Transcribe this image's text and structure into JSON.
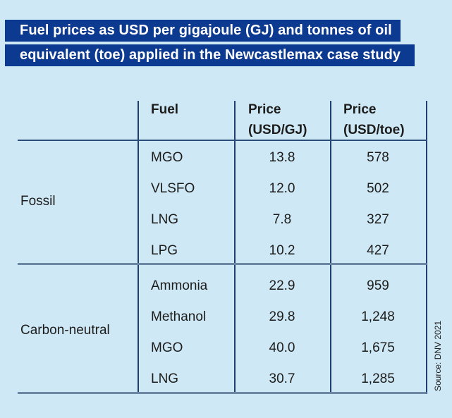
{
  "title": {
    "line1": "Fuel prices as USD per gigajoule (GJ) and tonnes of oil",
    "line2": "equivalent (toe) applied in the Newcastlemax case study"
  },
  "colors": {
    "background": "#cfe8f6",
    "title_bar": "#0d3a91",
    "title_text": "#ffffff",
    "grid_dark": "#1e3f70",
    "grid_mid": "#2c4d77",
    "grid_light": "#6b87a4",
    "text": "#1d1d1b"
  },
  "table": {
    "header": {
      "fuel": "Fuel",
      "price_gj_line1": "Price",
      "price_gj_line2": "(USD/GJ)",
      "price_toe_line1": "Price",
      "price_toe_line2": "(USD/toe)"
    },
    "sections": [
      {
        "category": "Fossil",
        "rows": [
          {
            "fuel": "MGO",
            "price_gj": "13.8",
            "price_toe": "578"
          },
          {
            "fuel": "VLSFO",
            "price_gj": "12.0",
            "price_toe": "502"
          },
          {
            "fuel": "LNG",
            "price_gj": "7.8",
            "price_toe": "327"
          },
          {
            "fuel": "LPG",
            "price_gj": "10.2",
            "price_toe": "427"
          }
        ]
      },
      {
        "category": "Carbon-neutral",
        "rows": [
          {
            "fuel": "Ammonia",
            "price_gj": "22.9",
            "price_toe": "959"
          },
          {
            "fuel": "Methanol",
            "price_gj": "29.8",
            "price_toe": "1,248"
          },
          {
            "fuel": "MGO",
            "price_gj": "40.0",
            "price_toe": "1,675"
          },
          {
            "fuel": "LNG",
            "price_gj": "30.7",
            "price_toe": "1,285"
          }
        ]
      }
    ]
  },
  "source": "Source: DNV 2021",
  "chart_data": {
    "type": "table",
    "title": "Fuel prices as USD per gigajoule (GJ) and tonnes of oil equivalent (toe) applied in the Newcastlemax case study",
    "columns": [
      "Category",
      "Fuel",
      "Price (USD/GJ)",
      "Price (USD/toe)"
    ],
    "rows": [
      [
        "Fossil",
        "MGO",
        13.8,
        578
      ],
      [
        "Fossil",
        "VLSFO",
        12.0,
        502
      ],
      [
        "Fossil",
        "LNG",
        7.8,
        327
      ],
      [
        "Fossil",
        "LPG",
        10.2,
        427
      ],
      [
        "Carbon-neutral",
        "Ammonia",
        22.9,
        959
      ],
      [
        "Carbon-neutral",
        "Methanol",
        29.8,
        1248
      ],
      [
        "Carbon-neutral",
        "MGO",
        40.0,
        1675
      ],
      [
        "Carbon-neutral",
        "LNG",
        30.7,
        1285
      ]
    ],
    "source": "DNV 2021"
  }
}
